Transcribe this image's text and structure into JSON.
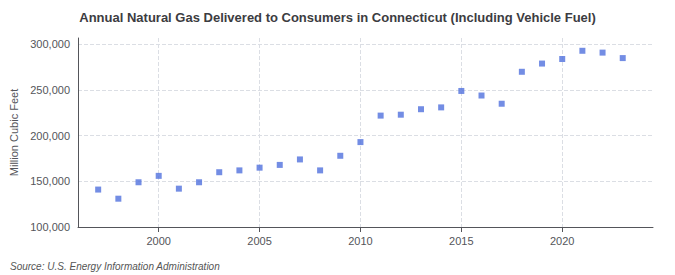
{
  "chart_data": {
    "type": "scatter",
    "title": "Annual Natural Gas Delivered to Consumers in Connecticut (Including Vehicle Fuel)",
    "ylabel": "Million Cubic Feet",
    "annotation": "Source: U.S. Energy Information Administration",
    "marker": "square",
    "x": [
      1997,
      1998,
      1999,
      2000,
      2001,
      2002,
      2003,
      2004,
      2005,
      2006,
      2007,
      2008,
      2009,
      2010,
      2011,
      2012,
      2013,
      2014,
      2015,
      2016,
      2017,
      2018,
      2019,
      2020,
      2021,
      2022,
      2023
    ],
    "values": [
      141000,
      131000,
      149000,
      156000,
      142000,
      149000,
      160000,
      162000,
      165000,
      168000,
      174000,
      162000,
      178000,
      193000,
      222000,
      223000,
      229000,
      231000,
      249000,
      244000,
      235000,
      270000,
      279000,
      284000,
      293000,
      291000,
      285000
    ],
    "xlim": [
      1996.0,
      2024.5
    ],
    "xticks": [
      2000,
      2005,
      2010,
      2015,
      2020
    ],
    "ylim": [
      100000,
      307000
    ],
    "yticks": [
      {
        "value": 100000,
        "label": "100,000"
      },
      {
        "value": 150000,
        "label": "150,000"
      },
      {
        "value": 200000,
        "label": "200,000"
      },
      {
        "value": 250000,
        "label": "250,000"
      },
      {
        "value": 300000,
        "label": "300,000"
      }
    ],
    "grid": true
  }
}
